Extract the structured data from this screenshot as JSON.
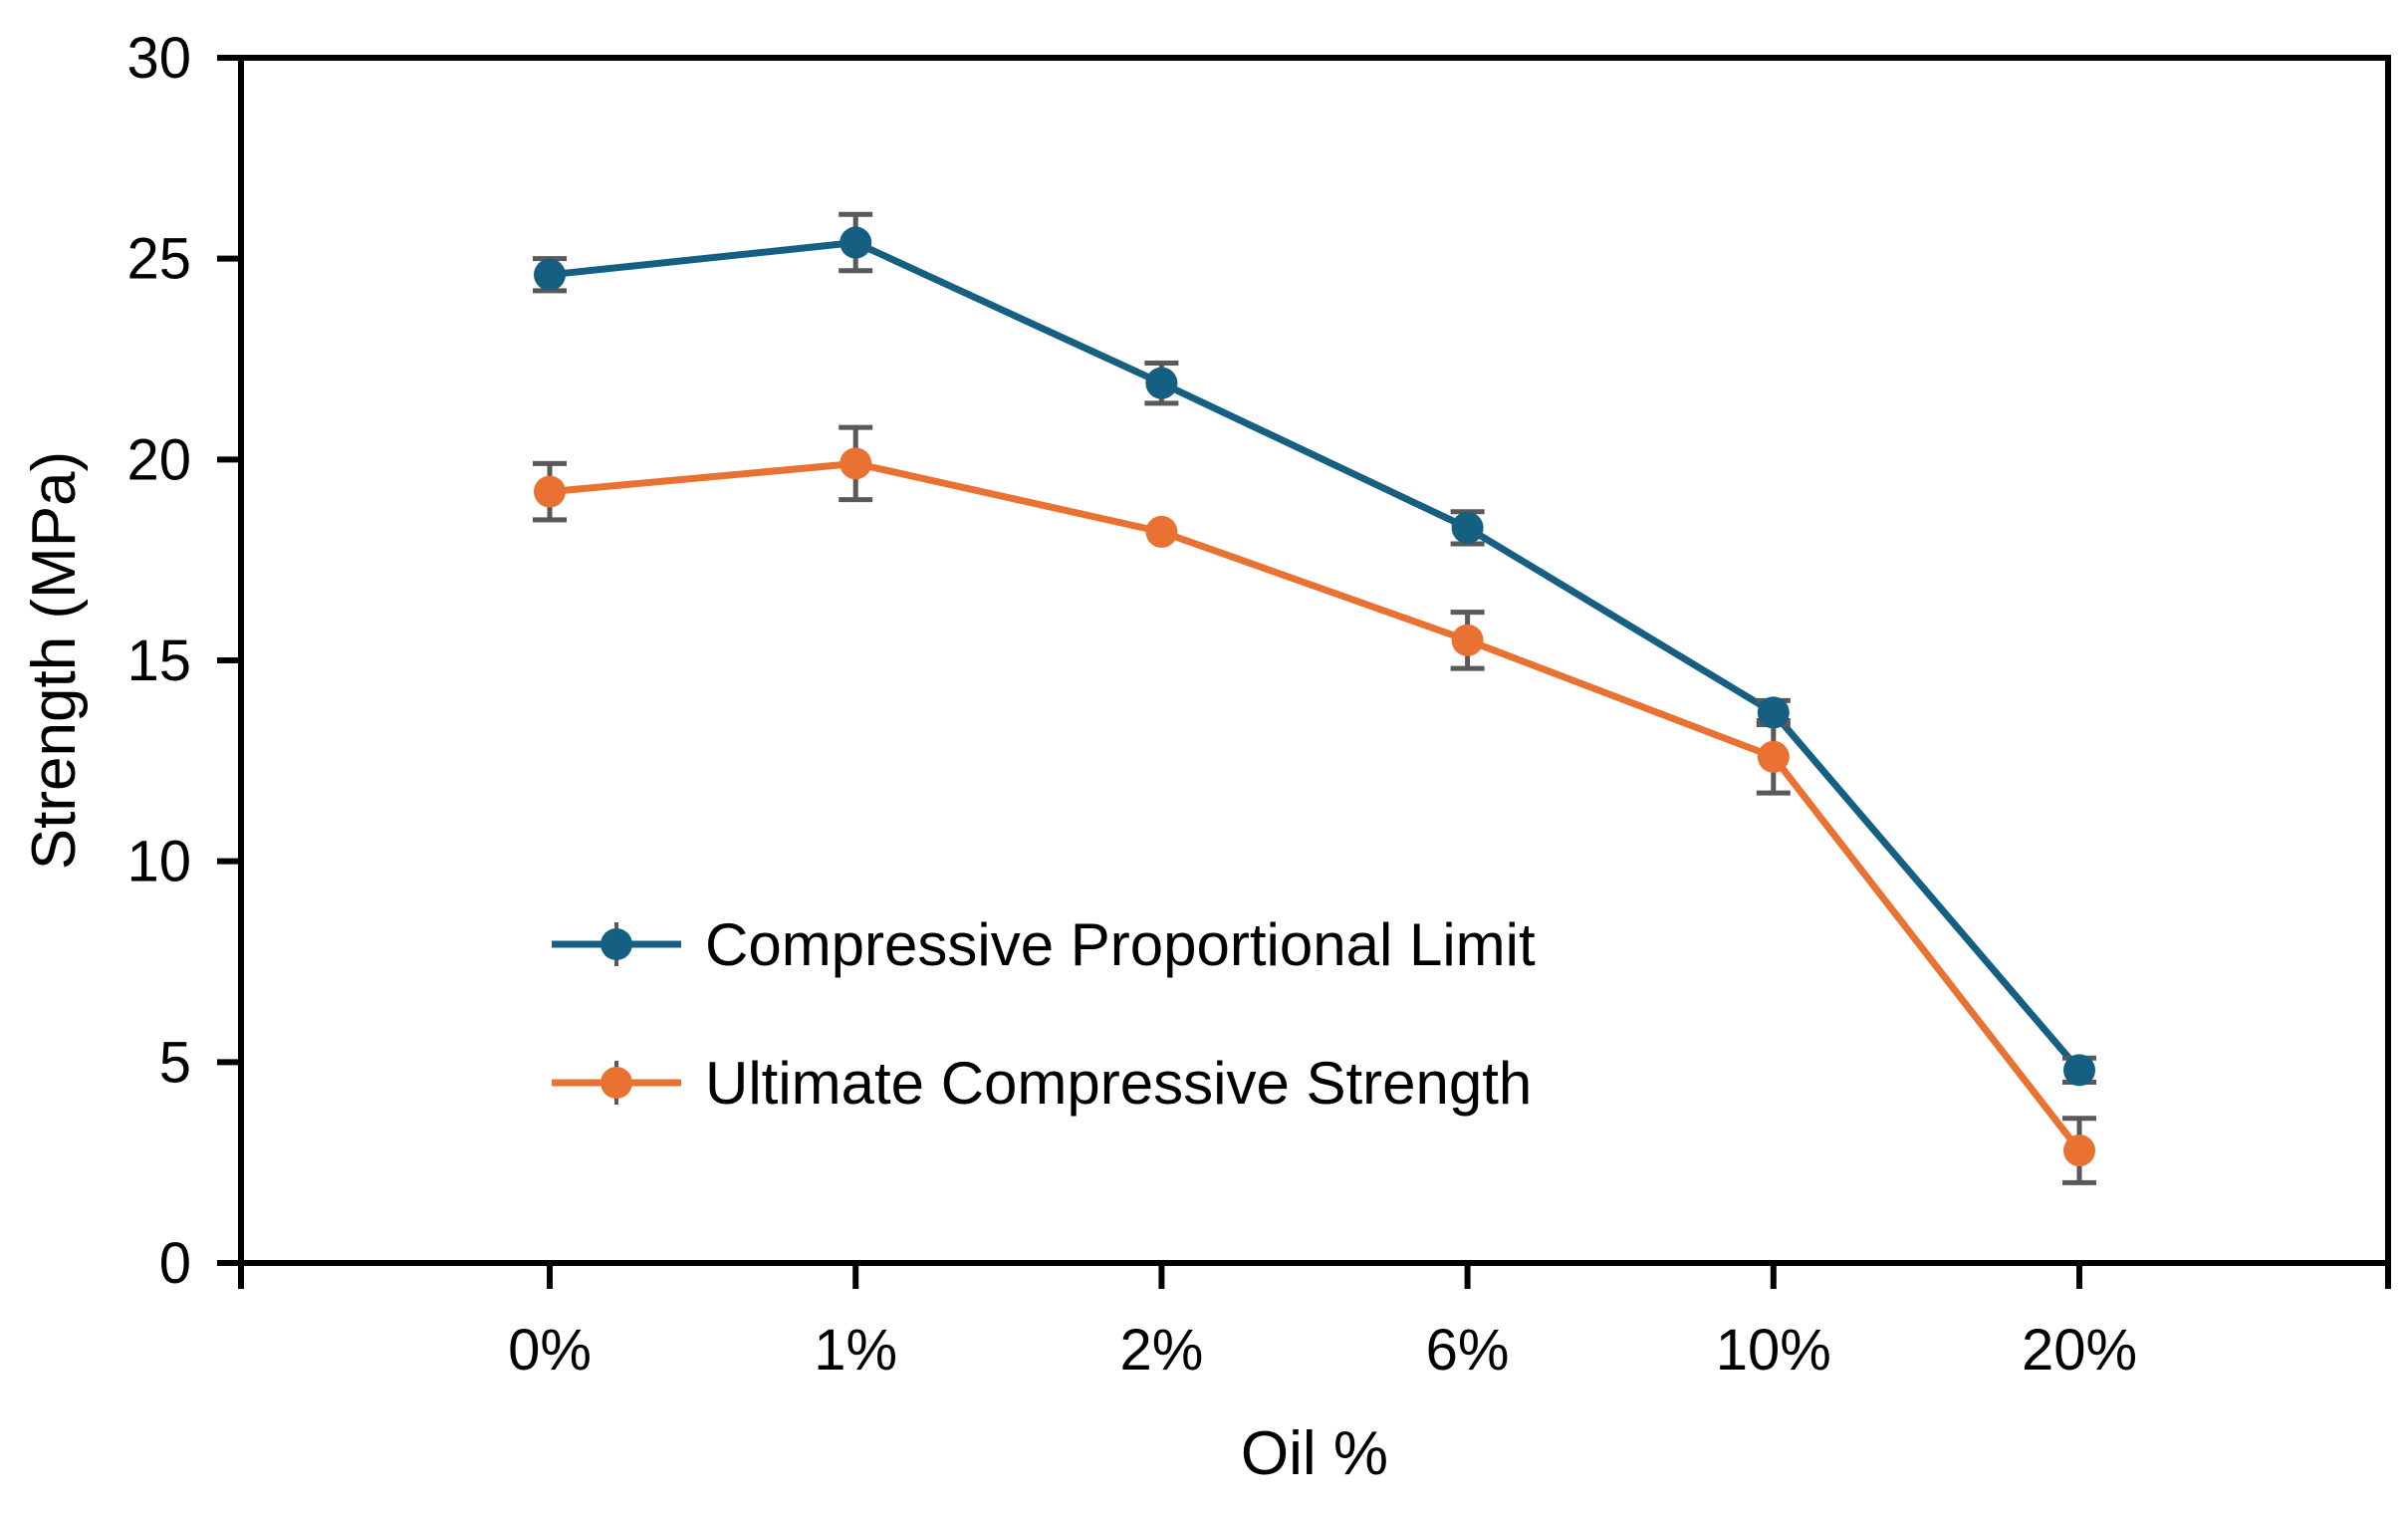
{
  "chart_data": {
    "type": "line",
    "title": "",
    "xlabel": "Oil %",
    "ylabel": "Strength (MPa)",
    "categories": [
      "0%",
      "1%",
      "2%",
      "6%",
      "10%",
      "20%"
    ],
    "series": [
      {
        "name": "Compressive Proportional Limit",
        "color": "#156082",
        "values": [
          24.6,
          25.4,
          21.9,
          18.3,
          13.7,
          4.8
        ],
        "error": [
          0.4,
          0.7,
          0.5,
          0.4,
          0.3,
          0.3
        ]
      },
      {
        "name": "Ultimate Compressive Strength",
        "color": "#E97132",
        "values": [
          19.2,
          19.9,
          18.2,
          15.5,
          12.6,
          2.8
        ],
        "error": [
          0.7,
          0.9,
          0,
          0.7,
          0.9,
          0.8
        ]
      }
    ],
    "ylim": [
      0,
      30
    ],
    "yticks": [
      0,
      5,
      10,
      15,
      20,
      25,
      30
    ],
    "grid": false,
    "legend_position": "inside-lower-left",
    "marker": "circle",
    "error_bar_color": "#595959",
    "axis_color": "#000000",
    "background_color": "#FFFFFF"
  }
}
